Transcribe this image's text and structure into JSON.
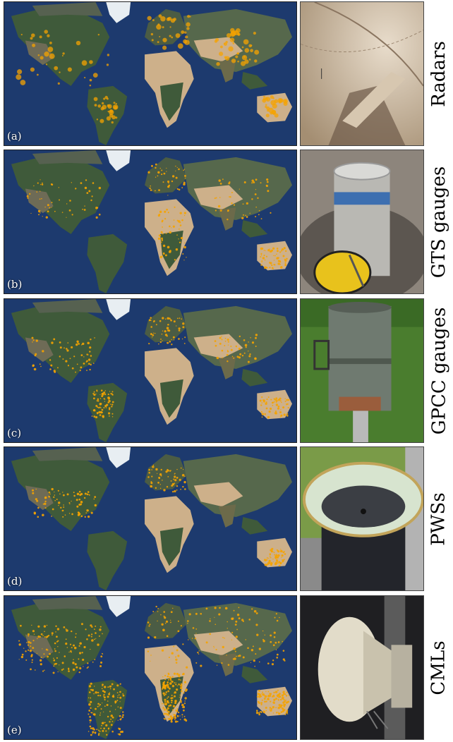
{
  "rows": [
    {
      "panel_label": "(a)",
      "row_label": "Radars",
      "photo_icon": "radar-dish-photo"
    },
    {
      "panel_label": "(b)",
      "row_label": "GTS gauges",
      "photo_icon": "rain-gauge-photo"
    },
    {
      "panel_label": "(c)",
      "row_label": "GPCC gauges",
      "photo_icon": "rain-gauge-photo"
    },
    {
      "panel_label": "(d)",
      "row_label": "PWSs",
      "photo_icon": "personal-weather-station-photo"
    },
    {
      "panel_label": "(e)",
      "row_label": "CMLs",
      "photo_icon": "microwave-antenna-photo"
    }
  ],
  "colors": {
    "ocean": "#1d3a6e",
    "land_green": "#3f5a3a",
    "desert": "#cdb08a",
    "ice": "#e8eef2",
    "marker": "#f5a300"
  }
}
